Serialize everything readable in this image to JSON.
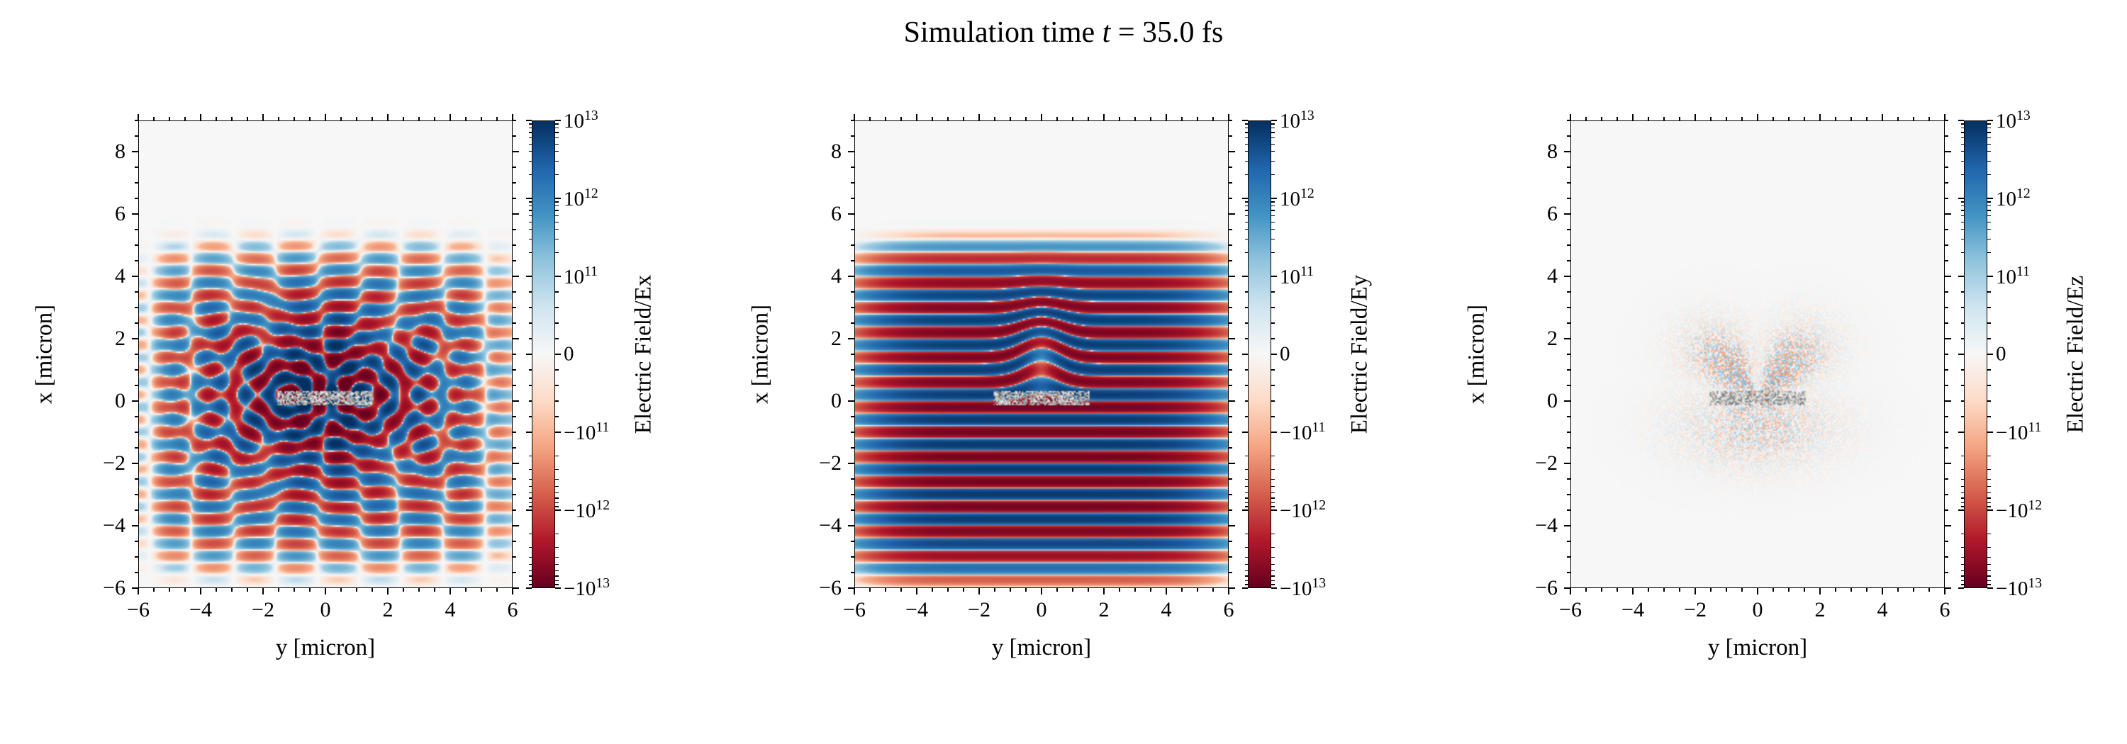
{
  "figure": {
    "title": {
      "prefix": "Simulation time ",
      "symbol": "t",
      "suffix": " = 35.0 fs",
      "full": "Simulation time t = 35.0 fs"
    },
    "background": "#ffffff"
  },
  "simulation": {
    "time_fs": 35.0
  },
  "chart_data": [
    {
      "type": "heatmap",
      "panel": "Ex",
      "xlabel": "y [micron]",
      "ylabel": "x [micron]",
      "xlim": [
        -6,
        6
      ],
      "ylim": [
        -6,
        9
      ],
      "xticks": [
        -6,
        -4,
        -2,
        0,
        2,
        4,
        6
      ],
      "xtick_labels": [
        "−6",
        "−4",
        "−2",
        "0",
        "2",
        "4",
        "6"
      ],
      "yticks": [
        -6,
        -4,
        -2,
        0,
        2,
        4,
        6,
        8
      ],
      "ytick_labels": [
        "−6",
        "−4",
        "−2",
        "0",
        "2",
        "4",
        "6",
        "8"
      ],
      "colorbar": {
        "label": "Electric Field/Ex",
        "scale": "symlog",
        "linthresh": 100000000000.0,
        "vmin": -10000000000000.0,
        "vmax": 10000000000000.0,
        "colormap": "RdBu",
        "tick_labels": [
          "10^13",
          "10^12",
          "10^11",
          "0",
          "−10^11",
          "−10^12",
          "−10^13"
        ],
        "tick_values": [
          10000000000000.0,
          1000000000000.0,
          100000000000.0,
          0,
          -100000000000.0,
          -1000000000000.0,
          -10000000000000.0
        ]
      },
      "pattern": "Checkerboard interference stripes with circular wavefronts radiated from the two edges of a thin target at x=0, y=±1.2; strongest near center, extent y:-5.5..5.5, x:-4.5..4"
    },
    {
      "type": "heatmap",
      "panel": "Ey",
      "xlabel": "y [micron]",
      "ylabel": "x [micron]",
      "xlim": [
        -6,
        6
      ],
      "ylim": [
        -6,
        9
      ],
      "xticks": [
        -6,
        -4,
        -2,
        0,
        2,
        4,
        6
      ],
      "xtick_labels": [
        "−6",
        "−4",
        "−2",
        "0",
        "2",
        "4",
        "6"
      ],
      "yticks": [
        -6,
        -4,
        -2,
        0,
        2,
        4,
        6,
        8
      ],
      "ytick_labels": [
        "−6",
        "−4",
        "−2",
        "0",
        "2",
        "4",
        "6",
        "8"
      ],
      "colorbar": {
        "label": "Electric Field/Ey",
        "scale": "symlog",
        "linthresh": 100000000000.0,
        "vmin": -10000000000000.0,
        "vmax": 10000000000000.0,
        "colormap": "RdBu",
        "tick_labels": [
          "10^13",
          "10^12",
          "10^11",
          "0",
          "−10^11",
          "−10^12",
          "−10^13"
        ],
        "tick_values": [
          10000000000000.0,
          1000000000000.0,
          100000000000.0,
          0,
          -100000000000.0,
          -1000000000000.0,
          -10000000000000.0
        ]
      },
      "pattern": "Strong horizontal plane-wave stripes (laser propagating along x, λ≈0.8 µm) spanning x≈−5..4.2 across full y width, with a diffraction notch and shadow directly above the target near y=0"
    },
    {
      "type": "heatmap",
      "panel": "Ez",
      "xlabel": "y [micron]",
      "ylabel": "x [micron]",
      "xlim": [
        -6,
        6
      ],
      "ylim": [
        -6,
        9
      ],
      "xticks": [
        -6,
        -4,
        -2,
        0,
        2,
        4,
        6
      ],
      "xtick_labels": [
        "−6",
        "−4",
        "−2",
        "0",
        "2",
        "4",
        "6"
      ],
      "yticks": [
        -6,
        -4,
        -2,
        0,
        2,
        4,
        6,
        8
      ],
      "ytick_labels": [
        "−6",
        "−4",
        "−2",
        "0",
        "2",
        "4",
        "6",
        "8"
      ],
      "colorbar": {
        "label": "Electric Field/Ez",
        "scale": "symlog",
        "linthresh": 100000000000.0,
        "vmin": -10000000000000.0,
        "vmax": 10000000000000.0,
        "colormap": "RdBu",
        "tick_labels": [
          "10^13",
          "10^12",
          "10^11",
          "0",
          "−10^11",
          "−10^12",
          "−10^13"
        ],
        "tick_values": [
          10000000000000.0,
          1000000000000.0,
          100000000000.0,
          0,
          -100000000000.0,
          -1000000000000.0,
          -10000000000000.0
        ]
      },
      "pattern": "Nearly zero field everywhere; faint butterfly-shaped speckle noise around the target region (x≈0..2.5, |y|<3) and a dark speckled line along the target bar"
    }
  ],
  "render": {
    "wavelength_um": 0.8,
    "target": {
      "x_range": [
        -0.12,
        0.34
      ],
      "y_range": [
        -1.55,
        1.55
      ]
    },
    "seeds": [
      11,
      22,
      33
    ],
    "colormap_rdbu_stops": [
      [
        103,
        0,
        31
      ],
      [
        178,
        24,
        43
      ],
      [
        214,
        96,
        77
      ],
      [
        244,
        165,
        130
      ],
      [
        253,
        219,
        199
      ],
      [
        247,
        247,
        247
      ],
      [
        209,
        229,
        240
      ],
      [
        146,
        197,
        222
      ],
      [
        67,
        147,
        195
      ],
      [
        33,
        102,
        172
      ],
      [
        5,
        48,
        97
      ]
    ],
    "plot_bg": "#f7f7f7"
  }
}
